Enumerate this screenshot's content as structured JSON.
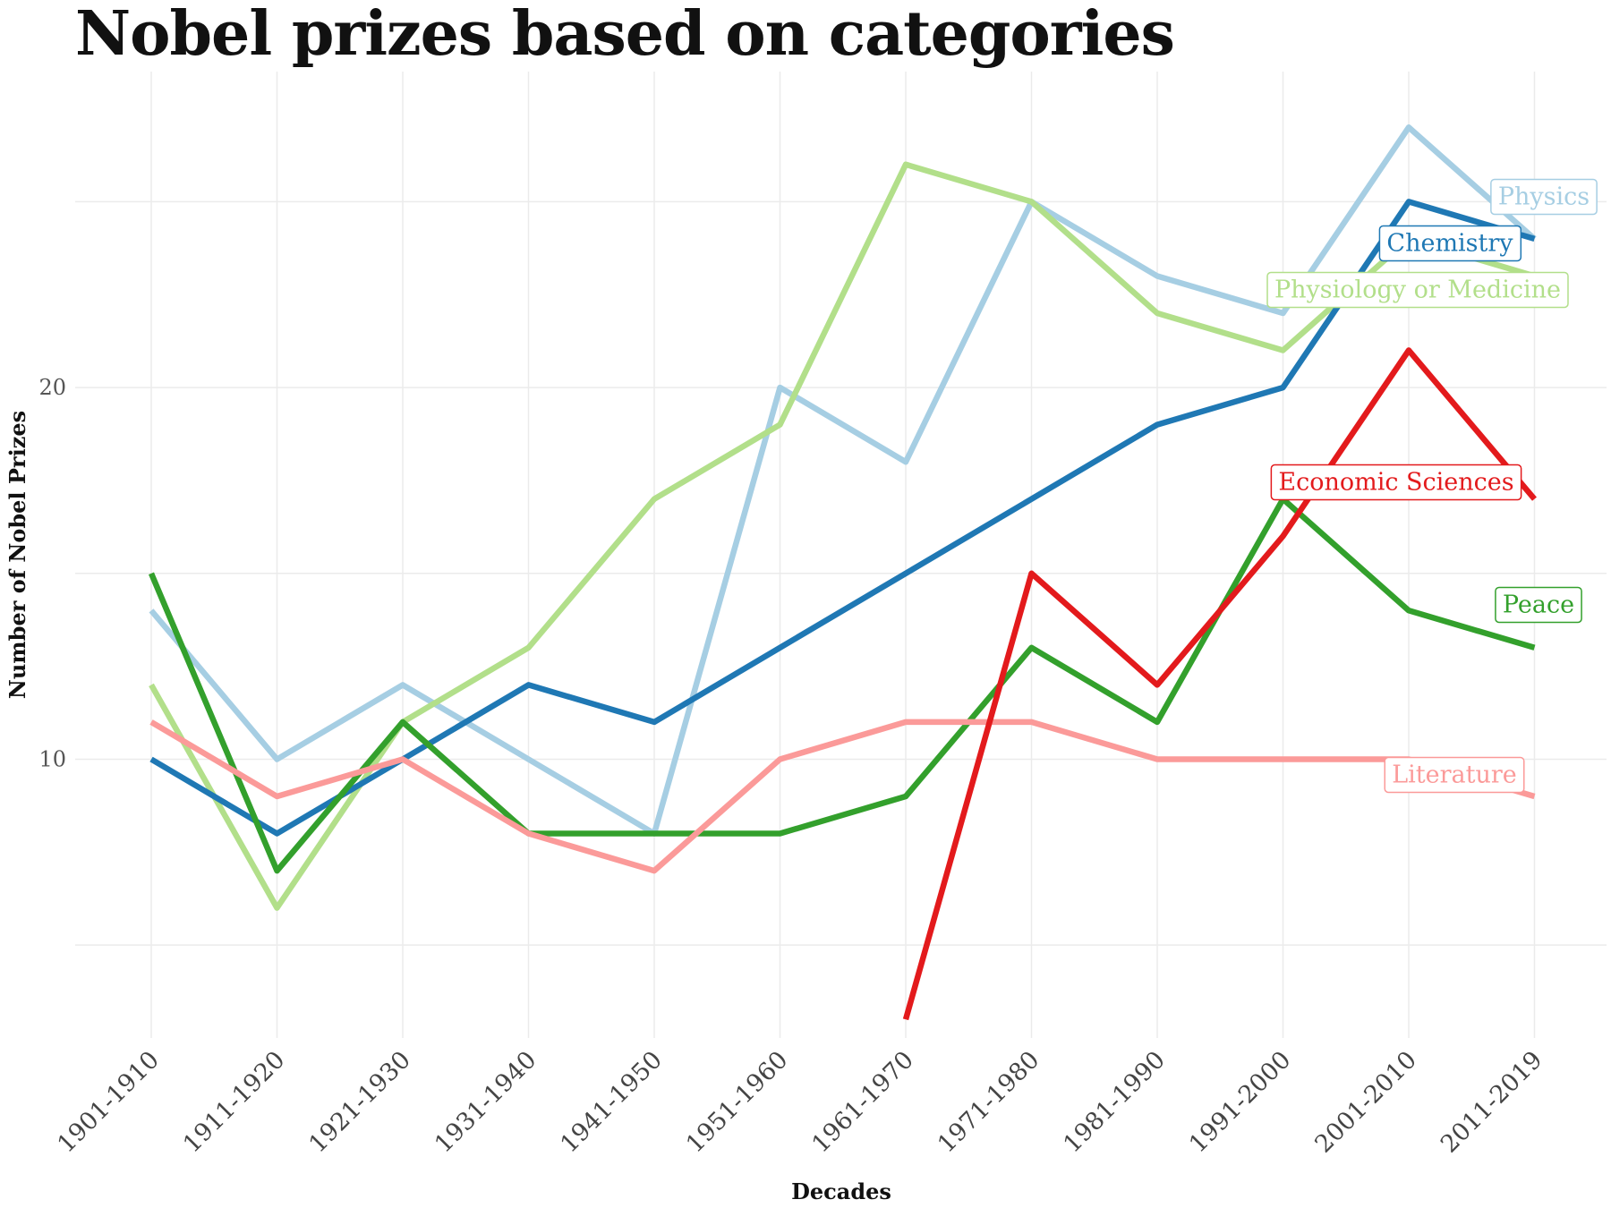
{
  "chart_data": {
    "type": "line",
    "title": "Nobel prizes based on categories",
    "xlabel": "Decades",
    "ylabel": "Number of Nobel Prizes",
    "categories": [
      "1901-1910",
      "1911-1920",
      "1921-1930",
      "1931-1940",
      "1941-1950",
      "1951-1960",
      "1961-1970",
      "1971-1980",
      "1981-1990",
      "1991-2000",
      "2001-2010",
      "2011-2019"
    ],
    "ylim": [
      2.5,
      28.5
    ],
    "yticks": [
      10,
      20
    ],
    "grid": true,
    "legend": "direct labels at line ends",
    "series": [
      {
        "name": "Physics",
        "color": "#a6cee3",
        "values": [
          14,
          10,
          12,
          10,
          8,
          20,
          18,
          25,
          23,
          22,
          27,
          24
        ]
      },
      {
        "name": "Physiology or Medicine",
        "color": "#b2df8a",
        "values": [
          12,
          6,
          11,
          13,
          17,
          19,
          26,
          25,
          22,
          21,
          24,
          23
        ]
      },
      {
        "name": "Chemistry",
        "color": "#1f78b4",
        "values": [
          10,
          8,
          10,
          12,
          11,
          13,
          15,
          17,
          19,
          20,
          25,
          24
        ]
      },
      {
        "name": "Peace",
        "color": "#33a02c",
        "values": [
          15,
          7,
          11,
          8,
          8,
          8,
          9,
          13,
          11,
          17,
          14,
          13
        ]
      },
      {
        "name": "Literature",
        "color": "#fb9a99",
        "values": [
          11,
          9,
          10,
          8,
          7,
          10,
          11,
          11,
          10,
          10,
          10,
          9
        ]
      },
      {
        "name": "Economic Sciences",
        "color": "#e31a1c",
        "values": [
          null,
          null,
          null,
          null,
          null,
          null,
          3,
          15,
          12,
          16,
          21,
          17
        ]
      }
    ]
  }
}
